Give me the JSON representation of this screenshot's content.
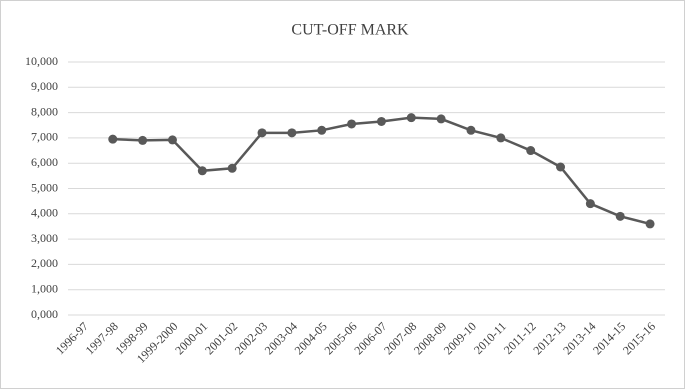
{
  "chart_data": {
    "type": "line",
    "title": "CUT-OFF MARK",
    "categories": [
      "1996-97",
      "1997-98",
      "1998-99",
      "1999-2000",
      "2000-01",
      "2001-02",
      "2002-03",
      "2003-04",
      "2004-05",
      "2005-06",
      "2006-07",
      "2007-08",
      "2008-09",
      "2009-10",
      "2010-11",
      "2011-12",
      "2012-13",
      "2013-14",
      "2014-15",
      "2015-16"
    ],
    "series": [
      {
        "name": "Cut-off mark",
        "color": "#595959",
        "values": [
          null,
          6950,
          6900,
          6920,
          5700,
          5800,
          7200,
          7200,
          7300,
          7550,
          7650,
          7800,
          7750,
          7300,
          7000,
          6500,
          5850,
          4400,
          3900,
          3600
        ]
      }
    ],
    "ylim": [
      0,
      10000
    ],
    "yticks": [
      {
        "value": 0,
        "label": "0,000"
      },
      {
        "value": 1000,
        "label": "1,000"
      },
      {
        "value": 2000,
        "label": "2,000"
      },
      {
        "value": 3000,
        "label": "3,000"
      },
      {
        "value": 4000,
        "label": "4,000"
      },
      {
        "value": 5000,
        "label": "5,000"
      },
      {
        "value": 6000,
        "label": "6,000"
      },
      {
        "value": 7000,
        "label": "7,000"
      },
      {
        "value": 8000,
        "label": "8,000"
      },
      {
        "value": 9000,
        "label": "9,000"
      },
      {
        "value": 10000,
        "label": "10,000"
      }
    ],
    "grid": true
  }
}
